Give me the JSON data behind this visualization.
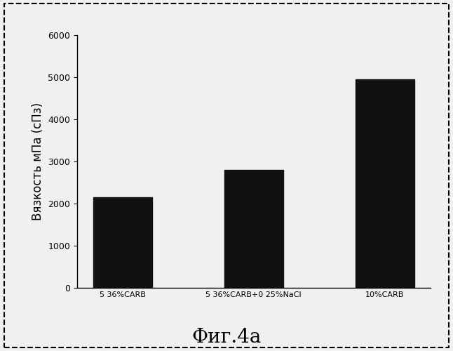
{
  "categories": [
    "5 36%CARB",
    "5 36%CARB+0 25%NaCl",
    "10%CARB"
  ],
  "values": [
    2150,
    2800,
    4950
  ],
  "bar_color": "#111111",
  "ylabel": "Вязкость мПа (сПз)",
  "ylim": [
    0,
    6000
  ],
  "yticks": [
    0,
    1000,
    2000,
    3000,
    4000,
    5000,
    6000
  ],
  "caption": "Фиг.4a",
  "bar_width": 0.45,
  "background_color": "#f0f0f0",
  "ylabel_fontsize": 12,
  "tick_fontsize": 9,
  "caption_fontsize": 20,
  "xtick_fontsize": 8
}
